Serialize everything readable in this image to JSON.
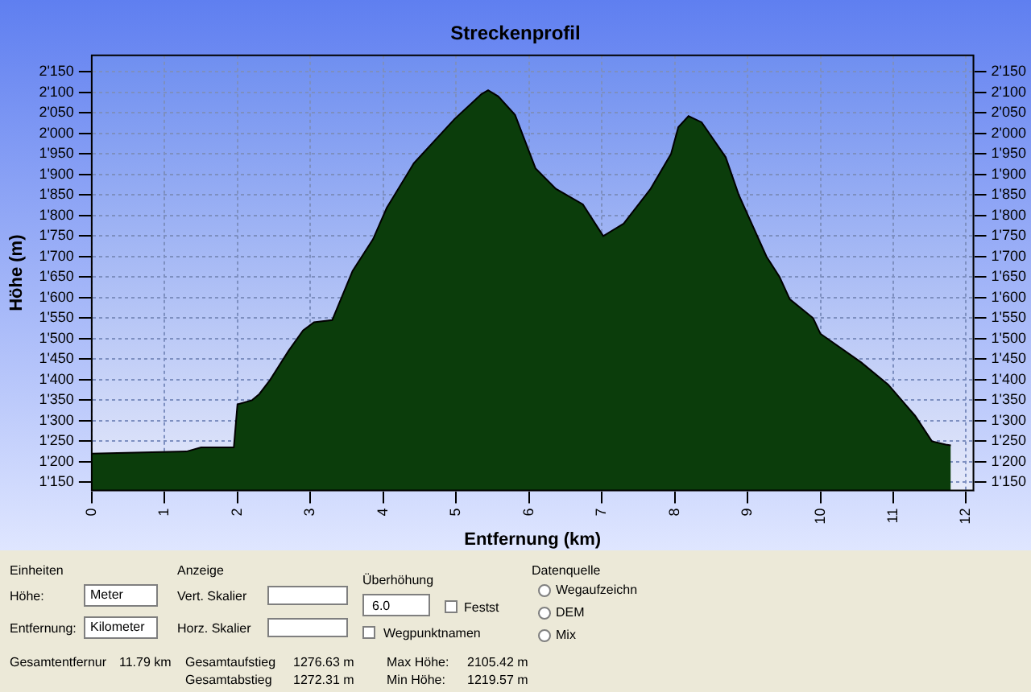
{
  "chart_data": {
    "type": "area",
    "title": "Streckenprofil",
    "xlabel": "Entfernung (km)",
    "ylabel": "Höhe (m)",
    "x": [
      0,
      1.3,
      1.5,
      1.95,
      2.0,
      2.2,
      2.3,
      2.45,
      2.7,
      2.9,
      3.05,
      3.3,
      3.58,
      3.86,
      4.05,
      4.42,
      4.98,
      5.35,
      5.44,
      5.58,
      5.81,
      6.09,
      6.37,
      6.74,
      7.02,
      7.3,
      7.67,
      7.95,
      8.05,
      8.19,
      8.37,
      8.7,
      8.88,
      9.26,
      9.44,
      9.58,
      9.9,
      10.0,
      10.56,
      10.93,
      11.3,
      11.53,
      11.72,
      11.79
    ],
    "series": [
      {
        "color": "#0b3d0b",
        "values": [
          1220,
          1225,
          1235,
          1235,
          1340,
          1350,
          1365,
          1400,
          1470,
          1520,
          1540,
          1545,
          1665,
          1742,
          1819,
          1927,
          2035,
          2096,
          2105,
          2090,
          2045,
          1915,
          1865,
          1827,
          1750,
          1780,
          1865,
          1950,
          2015,
          2042,
          2027,
          1942,
          1850,
          1700,
          1650,
          1596,
          1550,
          1512,
          1442,
          1388,
          1312,
          1250,
          1242,
          1240
        ]
      }
    ],
    "xlim": [
      0,
      12.1
    ],
    "xticks": [
      0,
      1,
      2,
      3,
      4,
      5,
      6,
      7,
      8,
      9,
      10,
      11,
      12
    ],
    "ylim": [
      1130,
      2190
    ],
    "yticks": [
      {
        "value": 1150,
        "label": "1'150"
      },
      {
        "value": 1200,
        "label": "1'200"
      },
      {
        "value": 1250,
        "label": "1'250"
      },
      {
        "value": 1300,
        "label": "1'300"
      },
      {
        "value": 1350,
        "label": "1'350"
      },
      {
        "value": 1400,
        "label": "1'400"
      },
      {
        "value": 1450,
        "label": "1'450"
      },
      {
        "value": 1500,
        "label": "1'500"
      },
      {
        "value": 1550,
        "label": "1'550"
      },
      {
        "value": 1600,
        "label": "1'600"
      },
      {
        "value": 1650,
        "label": "1'650"
      },
      {
        "value": 1700,
        "label": "1'700"
      },
      {
        "value": 1750,
        "label": "1'750"
      },
      {
        "value": 1800,
        "label": "1'800"
      },
      {
        "value": 1850,
        "label": "1'850"
      },
      {
        "value": 1900,
        "label": "1'900"
      },
      {
        "value": 1950,
        "label": "1'950"
      },
      {
        "value": 2000,
        "label": "2'000"
      },
      {
        "value": 2050,
        "label": "2'050"
      },
      {
        "value": 2100,
        "label": "2'100"
      },
      {
        "value": 2150,
        "label": "2'150"
      }
    ],
    "y2lim": [
      1130,
      2190
    ],
    "y2ticks": [
      {
        "value": 1150,
        "label": "1'150"
      },
      {
        "value": 1200,
        "label": "1'200"
      },
      {
        "value": 1250,
        "label": "1'250"
      },
      {
        "value": 1300,
        "label": "1'300"
      },
      {
        "value": 1350,
        "label": "1'350"
      },
      {
        "value": 1400,
        "label": "1'400"
      },
      {
        "value": 1450,
        "label": "1'450"
      },
      {
        "value": 1500,
        "label": "1'500"
      },
      {
        "value": 1550,
        "label": "1'550"
      },
      {
        "value": 1600,
        "label": "1'600"
      },
      {
        "value": 1650,
        "label": "1'650"
      },
      {
        "value": 1700,
        "label": "1'700"
      },
      {
        "value": 1750,
        "label": "1'750"
      },
      {
        "value": 1800,
        "label": "1'800"
      },
      {
        "value": 1850,
        "label": "1'850"
      },
      {
        "value": 1900,
        "label": "1'900"
      },
      {
        "value": 1950,
        "label": "1'950"
      },
      {
        "value": 2000,
        "label": "2'000"
      },
      {
        "value": 2050,
        "label": "2'050"
      },
      {
        "value": 2100,
        "label": "2'100"
      },
      {
        "value": 2150,
        "label": "2'150"
      }
    ],
    "grid": true,
    "legend": false,
    "annotations": [
      "Einheiten",
      "Höhe:",
      "Meter",
      "Entfernung:",
      "Kilometer",
      "Anzeige",
      "Vert. Skalier",
      "Horz. Skalier",
      "Überhöhung",
      "6.0",
      "Festst",
      "Wegpunktnamen",
      "Datenquelle",
      "Wegaufzeichn",
      "DEM",
      "Mix",
      "Gesamtentfernur",
      "11.79 km",
      "Gesamtaufstieg",
      "1276.63 m",
      "Gesamtabstieg",
      "1272.31 m",
      "Max Höhe:",
      "2105.42 m",
      "Min Höhe:",
      "1219.57 m"
    ]
  }
}
